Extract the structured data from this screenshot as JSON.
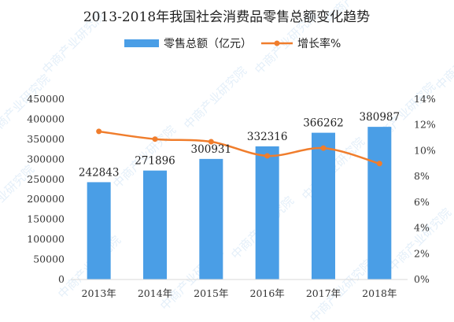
{
  "chart_data": {
    "type": "bar",
    "title": "2013-2018年我国社会消费品零售总额变化趋势",
    "categories": [
      "2013年",
      "2014年",
      "2015年",
      "2016年",
      "2017年",
      "2018年"
    ],
    "series": [
      {
        "name": "零售总额（亿元）",
        "type": "bar",
        "axis": "left",
        "color": "#4a9ee6",
        "values": [
          242843,
          271896,
          300931,
          332316,
          366262,
          380987
        ]
      },
      {
        "name": "增长率%",
        "type": "line",
        "axis": "right",
        "color": "#f07d2c",
        "values": [
          11.5,
          10.9,
          10.7,
          9.6,
          10.2,
          9.0
        ]
      }
    ],
    "y_left": {
      "min": 0,
      "max": 450000,
      "step": 50000
    },
    "y_right": {
      "min": 0,
      "max": 14,
      "step": 2,
      "unit": "%"
    },
    "data_labels": [
      "242843",
      "271896",
      "300931",
      "332316",
      "366262",
      "380987"
    ],
    "legend_position": "top-center",
    "grid": false
  },
  "watermark": "中商产业研究院"
}
